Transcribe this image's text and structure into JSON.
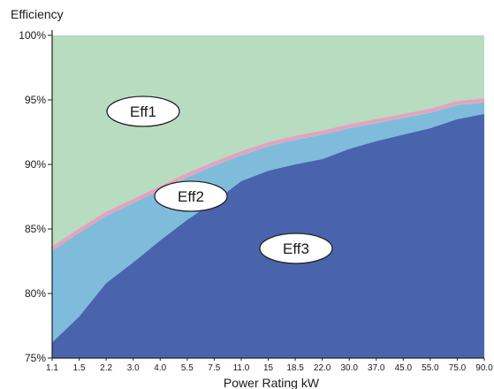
{
  "chart_data": {
    "type": "area",
    "title": "",
    "ylabel": "Efficiency",
    "xlabel": "Power Rating kW",
    "ylim": [
      75,
      100
    ],
    "grid": false,
    "categories": [
      "1.1",
      "1.5",
      "2.2",
      "3.0",
      "4.0",
      "5.5",
      "7.5",
      "11.0",
      "15",
      "18.5",
      "22.0",
      "30.0",
      "37.0",
      "45.0",
      "55.0",
      "75.0",
      "90.0"
    ],
    "y_ticks": [
      "75%",
      "80%",
      "85%",
      "90%",
      "95%",
      "100%"
    ],
    "y_tick_values": [
      75,
      80,
      85,
      90,
      95,
      100
    ],
    "series": [
      {
        "name": "Eff3",
        "label": "Eff3",
        "color": "#4a63ad",
        "upper": [
          76.2,
          78.2,
          80.8,
          82.4,
          84.1,
          85.7,
          87.1,
          88.7,
          89.5,
          90.0,
          90.4,
          91.2,
          91.8,
          92.3,
          92.8,
          93.5,
          93.9
        ]
      },
      {
        "name": "Eff2",
        "label": "Eff2",
        "color": "#7fbcdc",
        "upper": [
          83.3,
          84.7,
          86.0,
          87.0,
          88.0,
          89.0,
          89.9,
          90.7,
          91.4,
          91.9,
          92.3,
          92.8,
          93.2,
          93.6,
          94.0,
          94.6,
          94.8
        ]
      },
      {
        "name": "Eff1",
        "label": "Eff1",
        "color": "#b7dcc0",
        "upper": [
          100,
          100,
          100,
          100,
          100,
          100,
          100,
          100,
          100,
          100,
          100,
          100,
          100,
          100,
          100,
          100,
          100
        ]
      }
    ],
    "boundary_color": "#e8a0bf"
  }
}
